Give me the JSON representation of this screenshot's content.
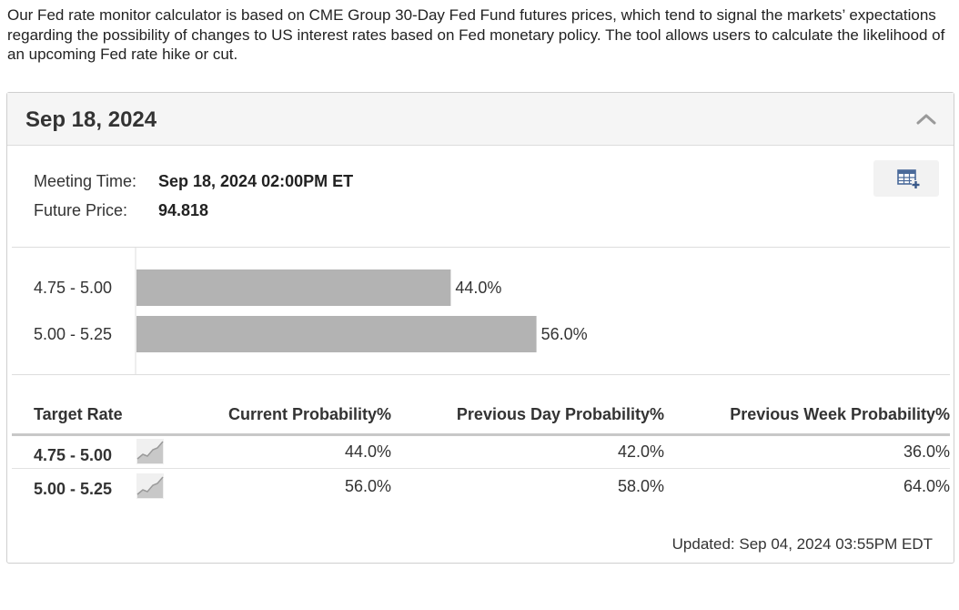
{
  "intro_text": "Our Fed rate monitor calculator is based on CME Group 30-Day Fed Fund futures prices, which tend to signal the markets’ expectations regarding the possibility of changes to US interest rates based on Fed monetary policy. The tool allows users to calculate the likelihood of an upcoming Fed rate hike or cut.",
  "panel": {
    "title": "Sep 18, 2024",
    "collapse_icon": "chevron-up-icon",
    "add_table_icon": "table-add-icon"
  },
  "meeting": {
    "time_label": "Meeting Time:",
    "time_value": "Sep 18, 2024 02:00PM ET",
    "price_label": "Future Price:",
    "price_value": "94.818"
  },
  "chart_data": {
    "type": "bar",
    "orientation": "horizontal",
    "categories": [
      "4.75 - 5.00",
      "5.00 - 5.25"
    ],
    "values": [
      44.0,
      56.0
    ],
    "value_labels": [
      "44.0%",
      "56.0%"
    ],
    "xlim": [
      0,
      100
    ],
    "bar_color": "#b3b3b3"
  },
  "table": {
    "headers": {
      "target_rate": "Target Rate",
      "current": "Current Probability%",
      "prev_day": "Previous Day Probability%",
      "prev_week": "Previous Week Probability%"
    },
    "rows": [
      {
        "rate": "4.75 - 5.00",
        "current": "44.0%",
        "prev_day": "42.0%",
        "prev_week": "36.0%",
        "trend_icon": "trend-chart-icon"
      },
      {
        "rate": "5.00 - 5.25",
        "current": "56.0%",
        "prev_day": "58.0%",
        "prev_week": "64.0%",
        "trend_icon": "trend-chart-icon"
      }
    ]
  },
  "updated_text": "Updated: Sep 04, 2024 03:55PM EDT"
}
